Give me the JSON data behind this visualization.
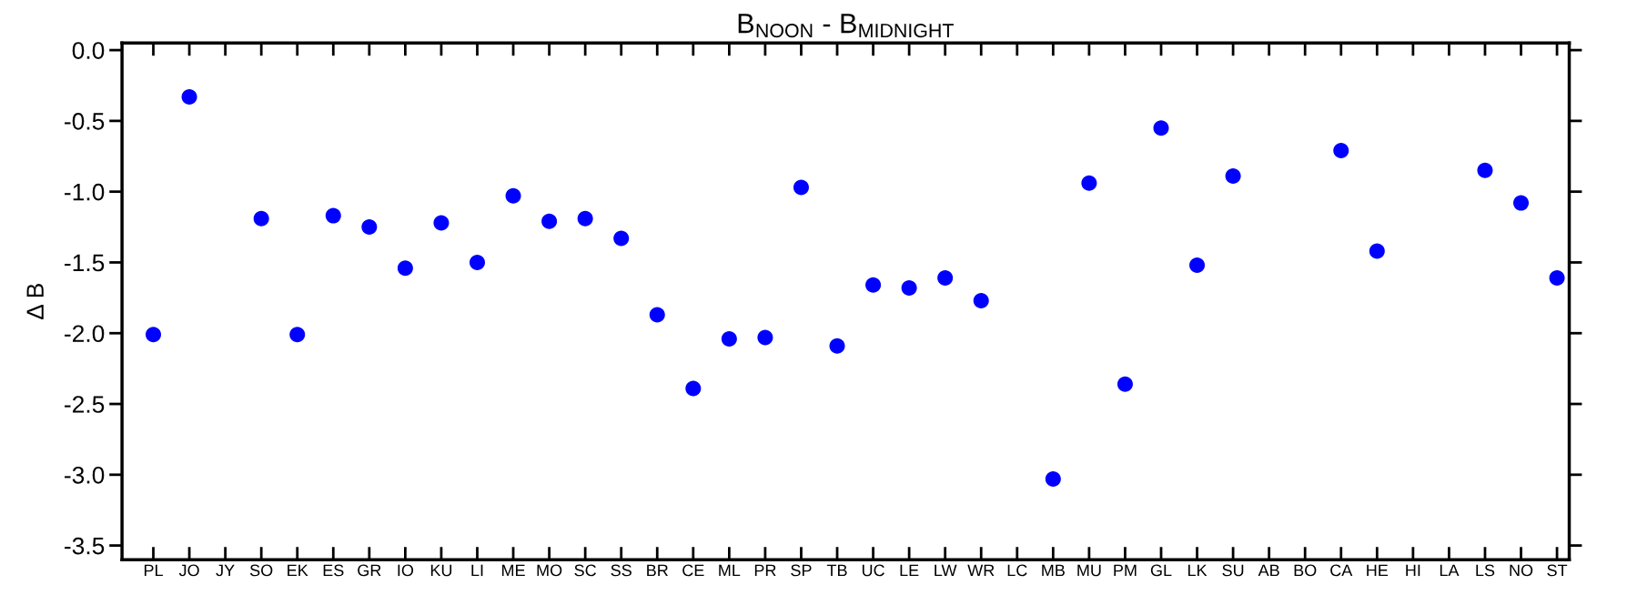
{
  "chart_data": {
    "type": "scatter",
    "title": "B$_{NOON}$ - B$_{MIDNIGHT}$",
    "ylabel": "Δ B",
    "categories": [
      "PL",
      "JO",
      "JY",
      "SO",
      "EK",
      "ES",
      "GR",
      "IO",
      "KU",
      "LI",
      "ME",
      "MO",
      "SC",
      "SS",
      "BR",
      "CE",
      "ML",
      "PR",
      "SP",
      "TB",
      "UC",
      "LE",
      "LW",
      "WR",
      "LC",
      "MB",
      "MU",
      "PM",
      "GL",
      "LK",
      "SU",
      "AB",
      "BO",
      "CA",
      "HE",
      "HI",
      "LA",
      "LS",
      "NO",
      "ST"
    ],
    "values": [
      -2.01,
      -0.33,
      null,
      -1.19,
      -2.01,
      -1.17,
      -1.25,
      -1.54,
      -1.22,
      -1.5,
      -1.03,
      -1.21,
      -1.19,
      -1.33,
      -1.87,
      -2.39,
      -2.04,
      -2.03,
      -0.97,
      -2.09,
      -1.66,
      -1.68,
      -1.61,
      -1.77,
      null,
      -3.03,
      -0.94,
      -2.36,
      -0.55,
      -1.52,
      -0.89,
      null,
      null,
      -0.71,
      -1.42,
      null,
      null,
      -0.85,
      -1.08,
      -1.61
    ],
    "color": "#0000ff",
    "marker": "circle",
    "ylim": [
      -3.6,
      0.05
    ],
    "yticks": [
      {
        "value": 0.0,
        "label": "0.0"
      },
      {
        "value": -0.5,
        "label": "-0.5"
      },
      {
        "value": -1.0,
        "label": "-1.0"
      },
      {
        "value": -1.5,
        "label": "-1.5"
      },
      {
        "value": -2.0,
        "label": "-2.0"
      },
      {
        "value": -2.5,
        "label": "-2.5"
      },
      {
        "value": -3.0,
        "label": "-3.0"
      },
      {
        "value": -3.5,
        "label": "-3.5"
      }
    ],
    "grid": false
  }
}
